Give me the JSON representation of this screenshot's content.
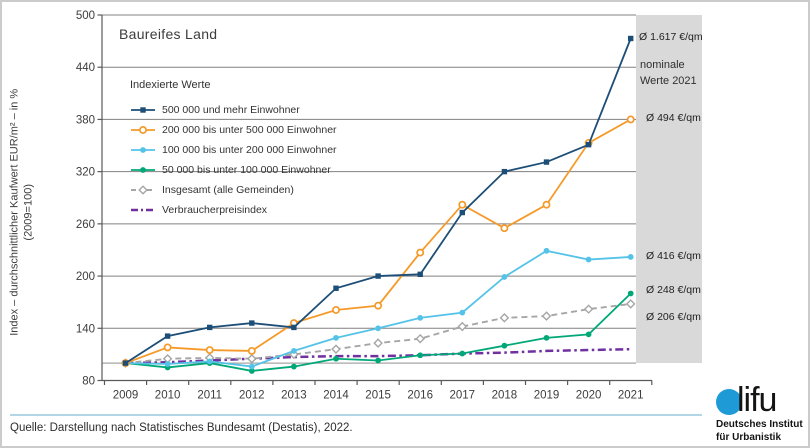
{
  "chart": {
    "title": "Baureifes Land",
    "y_axis_title": "Index – durchschnittlicher Kaufwert EUR/m² – in %",
    "y_axis_subtitle": "(2009=100)",
    "nominal_box_label": "nominale\nWerte 2021",
    "source": "Quelle: Darstellung nach Statistisches Bundesamt (Destatis), 2022."
  },
  "chart_data": {
    "type": "line",
    "title": "Baureifes Land",
    "ylabel": "Index – durchschnittlicher Kaufwert EUR/m² – in % (2009=100)",
    "ylim": [
      80,
      500
    ],
    "y_ticks": [
      80,
      140,
      200,
      260,
      320,
      380,
      440,
      500
    ],
    "x": [
      2009,
      2010,
      2011,
      2012,
      2013,
      2014,
      2015,
      2016,
      2017,
      2018,
      2019,
      2020,
      2021
    ],
    "reference_line_y": 100,
    "grid": true,
    "legend_title": "Indexierte Werte",
    "legend_position": "upper left inside",
    "series": [
      {
        "name": "500 000 und mehr Einwohner",
        "color": "#1d4e77",
        "style": "solid",
        "marker": "square",
        "values": [
          100,
          131,
          141,
          146,
          141,
          186,
          200,
          202,
          273,
          320,
          331,
          351,
          473
        ],
        "end_label": "Ø 1.617 €/qm"
      },
      {
        "name": "200 000 bis unter 500 000 Einwohner",
        "color": "#f59a28",
        "style": "solid",
        "marker": "open-circle",
        "values": [
          100,
          118,
          115,
          114,
          146,
          161,
          166,
          227,
          282,
          255,
          282,
          353,
          380
        ],
        "end_label": "Ø 494 €/qm"
      },
      {
        "name": "100 000 bis unter 200 000 Einwohner",
        "color": "#55c3e8",
        "style": "solid",
        "marker": "circle",
        "values": [
          100,
          99,
          102,
          96,
          114,
          129,
          140,
          152,
          158,
          199,
          229,
          219,
          222
        ],
        "end_label": "Ø 416 €/qm"
      },
      {
        "name": "50 000 bis unter 100 000 Einwohner",
        "color": "#00a878",
        "style": "solid",
        "marker": "circle",
        "values": [
          100,
          95,
          100,
          91,
          96,
          105,
          103,
          109,
          111,
          120,
          129,
          133,
          180
        ],
        "end_label": "Ø 248 €/qm"
      },
      {
        "name": "Insgesamt (alle Gemeinden)",
        "color": "#a6a6a6",
        "style": "dashed",
        "marker": "open-diamond",
        "values": [
          100,
          105,
          106,
          105,
          110,
          116,
          123,
          128,
          142,
          152,
          154,
          162,
          168
        ],
        "end_label": "Ø 206 €/qm"
      },
      {
        "name": "Verbraucherpreisindex",
        "color": "#7030a0",
        "style": "dashdot",
        "marker": "none",
        "values": [
          100,
          101,
          103,
          105,
          107,
          108,
          108,
          109,
          111,
          112,
          114,
          115,
          116
        ],
        "end_label": null
      }
    ]
  },
  "logo": {
    "wordmark": "lifu",
    "org_line1": "Deutsches Institut",
    "org_line2": "für Urbanistik"
  },
  "colors": {
    "panel_gray": "#d9d9d9",
    "gridline": "#808080",
    "axis": "#595959",
    "separator_blue": "#b3d6e6",
    "logo_blue": "#1e9bd7"
  }
}
